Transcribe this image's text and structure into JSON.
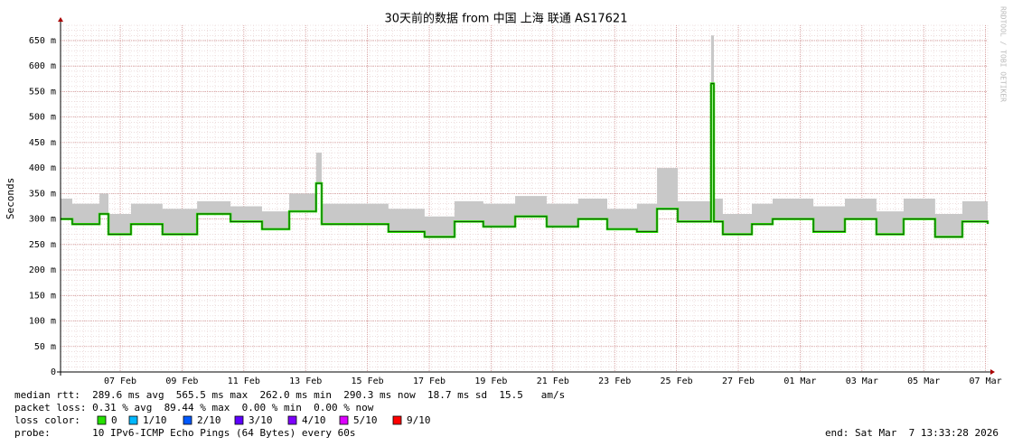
{
  "chart_data": {
    "type": "smokeping",
    "title": "30天前的数据 from 中国 上海 联通 AS17621",
    "y_label": "Seconds",
    "watermark": "RRDTOOL / TOBI OETIKER",
    "ylim": [
      0,
      0.68
    ],
    "yticks": [
      0,
      {
        "value": 0.05,
        "label": "50 m"
      },
      {
        "value": 0.1,
        "label": "100 m"
      },
      {
        "value": 0.15,
        "label": "150 m"
      },
      {
        "value": 0.2,
        "label": "200 m"
      },
      {
        "value": 0.25,
        "label": "250 m"
      },
      {
        "value": 0.3,
        "label": "300 m"
      },
      {
        "value": 0.35,
        "label": "350 m"
      },
      {
        "value": 0.4,
        "label": "400 m"
      },
      {
        "value": 0.45,
        "label": "450 m"
      },
      {
        "value": 0.5,
        "label": "500 m"
      },
      {
        "value": 0.55,
        "label": "550 m"
      },
      {
        "value": 0.6,
        "label": "600 m"
      },
      {
        "value": 0.65,
        "label": "650 m"
      }
    ],
    "xlim": [
      0,
      30
    ],
    "xticks": [
      {
        "value": 1.93,
        "label": "07 Feb"
      },
      {
        "value": 3.93,
        "label": "09 Feb"
      },
      {
        "value": 5.93,
        "label": "11 Feb"
      },
      {
        "value": 7.93,
        "label": "13 Feb"
      },
      {
        "value": 9.93,
        "label": "15 Feb"
      },
      {
        "value": 11.93,
        "label": "17 Feb"
      },
      {
        "value": 13.93,
        "label": "19 Feb"
      },
      {
        "value": 15.93,
        "label": "21 Feb"
      },
      {
        "value": 17.93,
        "label": "23 Feb"
      },
      {
        "value": 19.93,
        "label": "25 Feb"
      },
      {
        "value": 21.93,
        "label": "27 Feb"
      },
      {
        "value": 23.93,
        "label": "01 Mar"
      },
      {
        "value": 25.93,
        "label": "03 Mar"
      },
      {
        "value": 27.93,
        "label": "05 Mar"
      },
      {
        "value": 29.93,
        "label": "07 Mar"
      }
    ],
    "grid": true,
    "step": true,
    "x": [
      0,
      0.38,
      1.26,
      1.55,
      2.28,
      3.3,
      4.42,
      5.5,
      6.52,
      7.4,
      8.27,
      8.45,
      10.61,
      11.78,
      12.75,
      13.68,
      14.71,
      15.73,
      16.75,
      17.69,
      18.65,
      19.3,
      19.97,
      21.05,
      21.14,
      21.43,
      22.37,
      23.04,
      24.36,
      25.38,
      26.4,
      27.28,
      28.3,
      29.18,
      30
    ],
    "series": [
      {
        "name": "median rtt",
        "color": "#26e000",
        "values": [
          0.3,
          0.29,
          0.31,
          0.27,
          0.29,
          0.27,
          0.31,
          0.295,
          0.28,
          0.315,
          0.37,
          0.29,
          0.275,
          0.265,
          0.295,
          0.285,
          0.305,
          0.285,
          0.3,
          0.28,
          0.275,
          0.32,
          0.295,
          0.5655,
          0.295,
          0.27,
          0.29,
          0.3,
          0.275,
          0.3,
          0.27,
          0.3,
          0.265,
          0.295,
          0.2903
        ]
      },
      {
        "name": "smoke",
        "color": "#c8c8c8",
        "values": [
          0.34,
          0.33,
          0.35,
          0.31,
          0.33,
          0.32,
          0.335,
          0.325,
          0.315,
          0.35,
          0.43,
          0.33,
          0.32,
          0.305,
          0.335,
          0.33,
          0.345,
          0.33,
          0.34,
          0.32,
          0.33,
          0.4,
          0.335,
          0.66,
          0.34,
          0.31,
          0.33,
          0.34,
          0.325,
          0.34,
          0.315,
          0.34,
          0.31,
          0.335,
          0.33
        ]
      }
    ],
    "stats": [
      "median rtt:  289.6 ms avg  565.5 ms max  262.0 ms min  290.3 ms now  18.7 ms sd  15.5   am/s",
      "packet loss: 0.31 % avg  89.44 % max  0.00 % min  0.00 % now",
      "probe:       10 IPv6-ICMP Echo Pings (64 Bytes) every 60s"
    ],
    "loss_title": "loss color:",
    "loss_legend": [
      {
        "label": "0",
        "color": "#26e000"
      },
      {
        "label": "1/10",
        "color": "#00b8ff"
      },
      {
        "label": "2/10",
        "color": "#0059ff"
      },
      {
        "label": "3/10",
        "color": "#5e00ff"
      },
      {
        "label": "4/10",
        "color": "#7e00ff"
      },
      {
        "label": "5/10",
        "color": "#dd00ff"
      },
      {
        "label": "9/10",
        "color": "#ff0000"
      }
    ],
    "end": "end: Sat Mar  7 13:33:28 2026"
  }
}
